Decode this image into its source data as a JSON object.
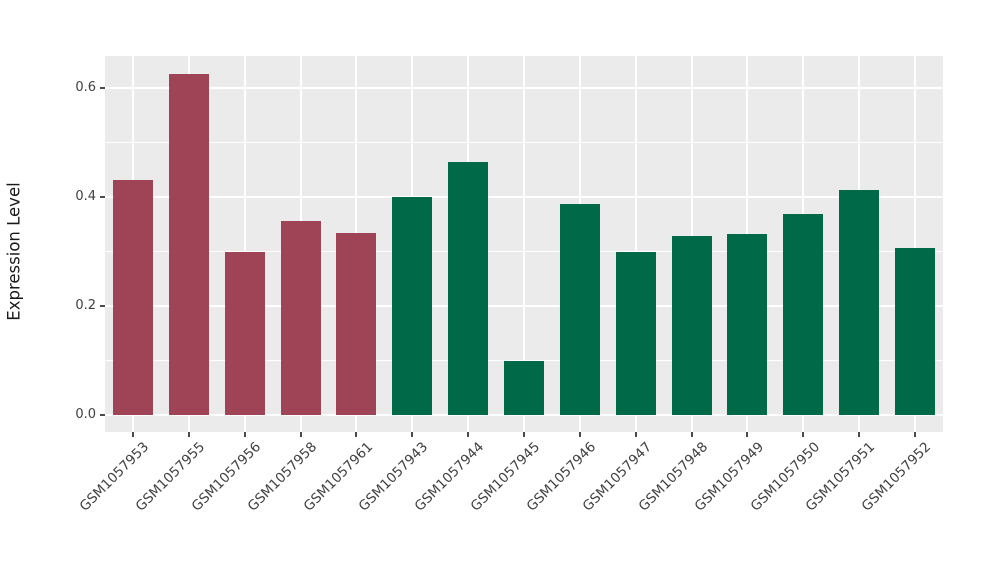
{
  "chart_data": {
    "type": "bar",
    "title": "",
    "xlabel": "",
    "ylabel": "Expression Level",
    "categories": [
      "GSM1057953",
      "GSM1057955",
      "GSM1057956",
      "GSM1057958",
      "GSM1057961",
      "GSM1057943",
      "GSM1057944",
      "GSM1057945",
      "GSM1057946",
      "GSM1057947",
      "GSM1057948",
      "GSM1057949",
      "GSM1057950",
      "GSM1057951",
      "GSM1057952"
    ],
    "values": [
      0.432,
      0.627,
      0.3,
      0.357,
      0.334,
      0.401,
      0.465,
      0.1,
      0.387,
      0.3,
      0.328,
      0.333,
      0.369,
      0.413,
      0.307
    ],
    "bar_color_keys": [
      "maroon",
      "maroon",
      "maroon",
      "maroon",
      "maroon",
      "green",
      "green",
      "green",
      "green",
      "green",
      "green",
      "green",
      "green",
      "green",
      "green"
    ],
    "colors": {
      "maroon": "#9F4356",
      "green": "#006948",
      "panel_background": "#EBEBEB",
      "gridline": "#FFFFFF",
      "tick_text": "#404040",
      "axis_title_text": "#1A1A1A"
    },
    "ytick_labels": [
      "0.0",
      "0.2",
      "0.4",
      "0.6"
    ],
    "ytick_values": [
      0.0,
      0.2,
      0.4,
      0.6
    ],
    "minor_gridline_values": [
      0.1,
      0.3,
      0.5
    ],
    "ylim": [
      -0.031,
      0.659
    ],
    "grid": "on",
    "legend": "none",
    "x_label_rotation_deg": 45
  }
}
